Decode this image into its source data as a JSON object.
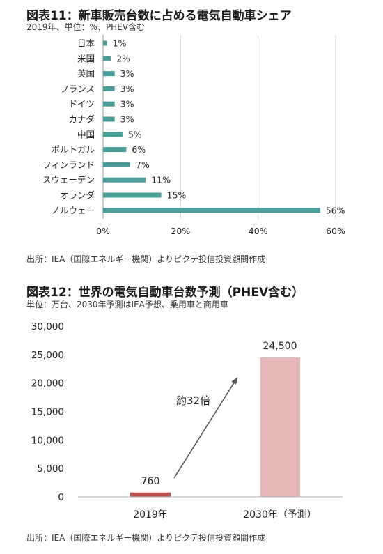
{
  "chart_data": [
    {
      "type": "bar",
      "orientation": "horizontal",
      "title": "図表11：新車販売台数に占める電気自動車シェア",
      "subtitle": "2019年、単位：%、PHEV含む",
      "source": "出所：IEA（国際エネルギー機関）よりピクテ投信投資顧問作成",
      "categories": [
        "日本",
        "米国",
        "英国",
        "フランス",
        "ドイツ",
        "カナダ",
        "中国",
        "ポルトガル",
        "フィンランド",
        "スウェーデン",
        "オランダ",
        "ノルウェー"
      ],
      "values": [
        1,
        2,
        3,
        3,
        3,
        3,
        5,
        6,
        7,
        11,
        15,
        56
      ],
      "data_labels": [
        "1%",
        "2%",
        "3%",
        "3%",
        "3%",
        "3%",
        "5%",
        "6%",
        "7%",
        "11%",
        "15%",
        "56%"
      ],
      "xlim": [
        0,
        60
      ],
      "xticks": [
        "0%",
        "20%",
        "40%",
        "60%"
      ],
      "grid": true,
      "bar_color": "#4a9e9a"
    },
    {
      "type": "bar",
      "title": "図表12：世界の電気自動車台数予測（PHEV含む）",
      "subtitle": "単位：万台、2030年予測はIEA予想、乗用車と商用車",
      "source": "出所：IEA（国際エネルギー機関）よりピクテ投信投資顧問作成",
      "categories": [
        "2019年",
        "2030年（予測）"
      ],
      "values": [
        760,
        24500
      ],
      "data_labels": [
        "760",
        "24,500"
      ],
      "ylim": [
        0,
        30000
      ],
      "yticks": [
        "0",
        "5,000",
        "10,000",
        "15,000",
        "20,000",
        "25,000",
        "30,000"
      ],
      "annotation": "約32倍",
      "grid": false,
      "bar_colors": [
        "#c0504d",
        "#e6b9b8"
      ]
    }
  ]
}
